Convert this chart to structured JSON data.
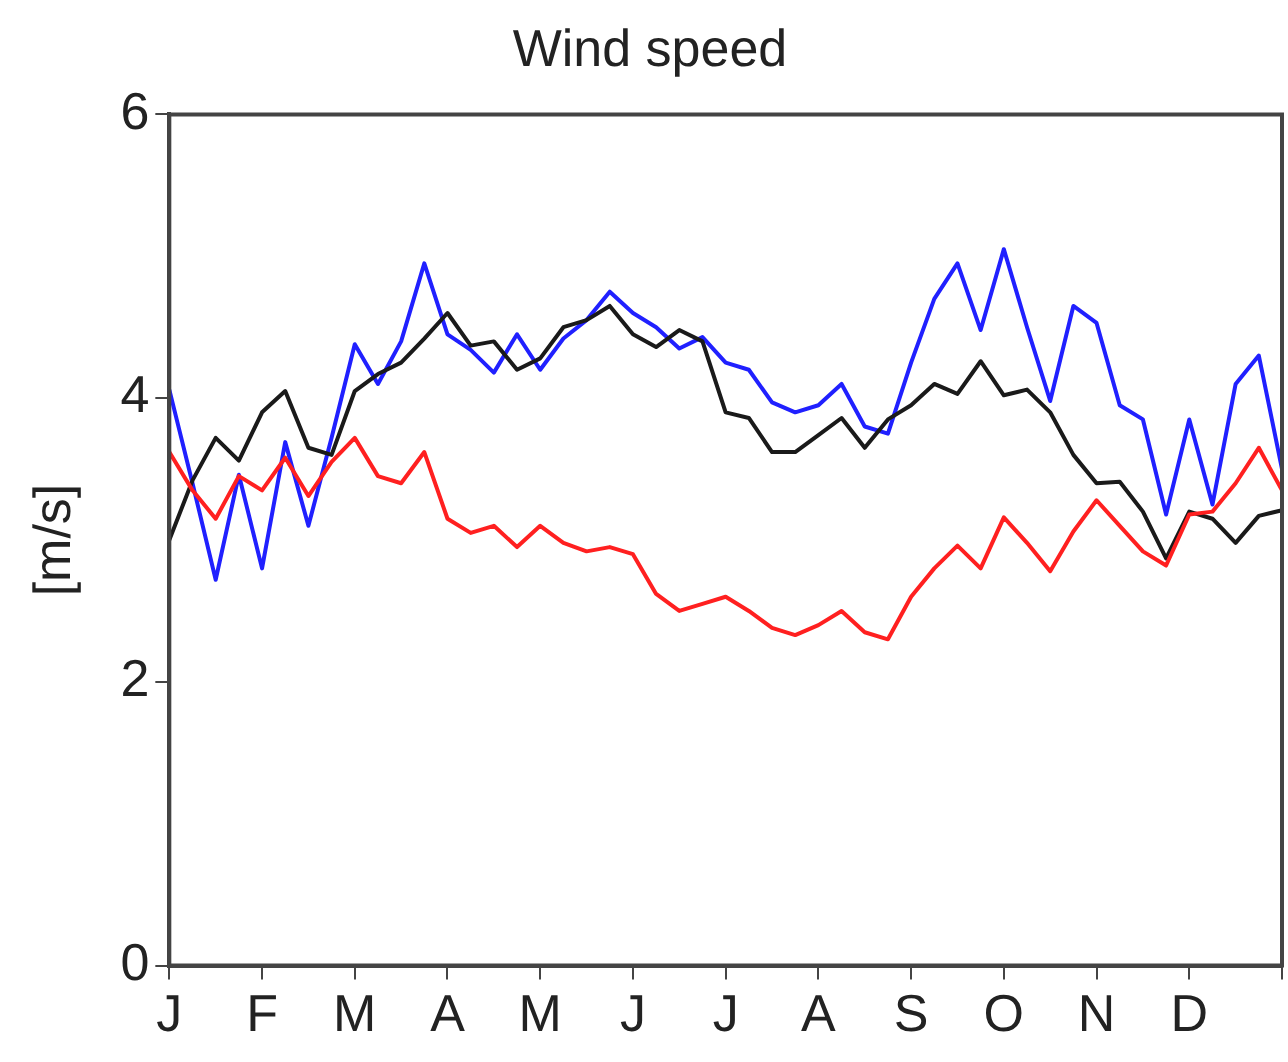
{
  "chart_data": {
    "type": "line",
    "title": "Wind speed",
    "ylabel": "[m/s]",
    "categories": [
      "J",
      null,
      null,
      null,
      "F",
      null,
      null,
      null,
      "M",
      null,
      null,
      null,
      "A",
      null,
      null,
      null,
      "M",
      null,
      null,
      null,
      "J",
      null,
      null,
      null,
      "J",
      null,
      null,
      null,
      "A",
      null,
      null,
      null,
      "S",
      null,
      null,
      null,
      "O",
      null,
      null,
      null,
      "N",
      null,
      null,
      null,
      "D",
      null,
      null,
      null,
      null
    ],
    "ylim": [
      0,
      6
    ],
    "yticks": [
      0,
      2,
      4,
      6
    ],
    "grid": false,
    "legend": false,
    "marker": "none",
    "line_style": "solid",
    "series": [
      {
        "color": "#ff2020",
        "values": [
          3.62,
          3.35,
          3.15,
          3.45,
          3.35,
          3.58,
          3.31,
          3.55,
          3.72,
          3.45,
          3.4,
          3.62,
          3.15,
          3.05,
          3.1,
          2.95,
          3.1,
          2.98,
          2.92,
          2.95,
          2.9,
          2.62,
          2.5,
          2.55,
          2.6,
          2.5,
          2.38,
          2.33,
          2.4,
          2.5,
          2.35,
          2.3,
          2.6,
          2.8,
          2.96,
          2.8,
          3.16,
          2.98,
          2.78,
          3.06,
          3.28,
          3.1,
          2.92,
          2.82,
          3.18,
          3.2,
          3.4,
          3.65,
          3.35
        ]
      },
      {
        "color": "#1a1a1a",
        "values": [
          3.0,
          3.42,
          3.72,
          3.56,
          3.9,
          4.05,
          3.65,
          3.6,
          4.05,
          4.17,
          4.25,
          4.42,
          4.6,
          4.37,
          4.4,
          4.2,
          4.28,
          4.5,
          4.55,
          4.65,
          4.45,
          4.36,
          4.48,
          4.4,
          3.9,
          3.86,
          3.62,
          3.62,
          3.74,
          3.86,
          3.65,
          3.85,
          3.95,
          4.1,
          4.03,
          4.26,
          4.02,
          4.06,
          3.9,
          3.6,
          3.4,
          3.41,
          3.2,
          2.87,
          3.2,
          3.15,
          2.98,
          3.17,
          3.21
        ]
      },
      {
        "color": "#2020ff",
        "values": [
          4.06,
          3.4,
          2.72,
          3.46,
          2.8,
          3.69,
          3.1,
          3.72,
          4.38,
          4.1,
          4.4,
          4.95,
          4.45,
          4.34,
          4.18,
          4.45,
          4.2,
          4.42,
          4.55,
          4.75,
          4.6,
          4.5,
          4.35,
          4.43,
          4.25,
          4.2,
          3.97,
          3.9,
          3.95,
          4.1,
          3.8,
          3.75,
          4.25,
          4.7,
          4.95,
          4.48,
          5.05,
          4.5,
          3.98,
          4.65,
          4.53,
          3.95,
          3.85,
          3.18,
          3.85,
          3.25,
          4.1,
          4.3,
          3.5
        ]
      }
    ]
  }
}
